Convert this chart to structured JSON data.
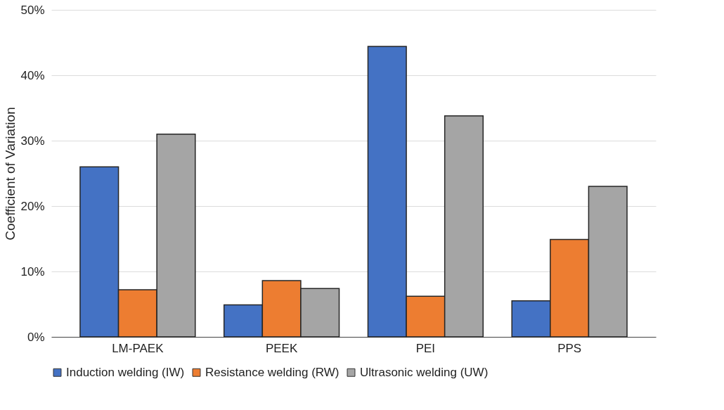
{
  "chart_data": {
    "type": "bar",
    "ylabel": "Coefficient of Variation",
    "categories": [
      "LM-PAEK",
      "PEEK",
      "PEI",
      "PPS"
    ],
    "series": [
      {
        "name": "Induction welding (IW)",
        "color": "#4472c4",
        "values": [
          26.0,
          4.9,
          44.4,
          5.5
        ]
      },
      {
        "name": "Resistance welding (RW)",
        "color": "#ed7d31",
        "values": [
          7.2,
          8.6,
          6.2,
          14.9
        ]
      },
      {
        "name": "Ultrasonic welding (UW)",
        "color": "#a5a5a5",
        "values": [
          31.0,
          7.4,
          33.8,
          23.0
        ]
      }
    ],
    "ylim": [
      0,
      50
    ],
    "yticks": [
      {
        "value": 0,
        "label": "0%"
      },
      {
        "value": 10,
        "label": "10%"
      },
      {
        "value": 20,
        "label": "20%"
      },
      {
        "value": 30,
        "label": "30%"
      },
      {
        "value": 40,
        "label": "40%"
      },
      {
        "value": 50,
        "label": "50%"
      }
    ],
    "grid": "y",
    "legend": "bottom"
  }
}
